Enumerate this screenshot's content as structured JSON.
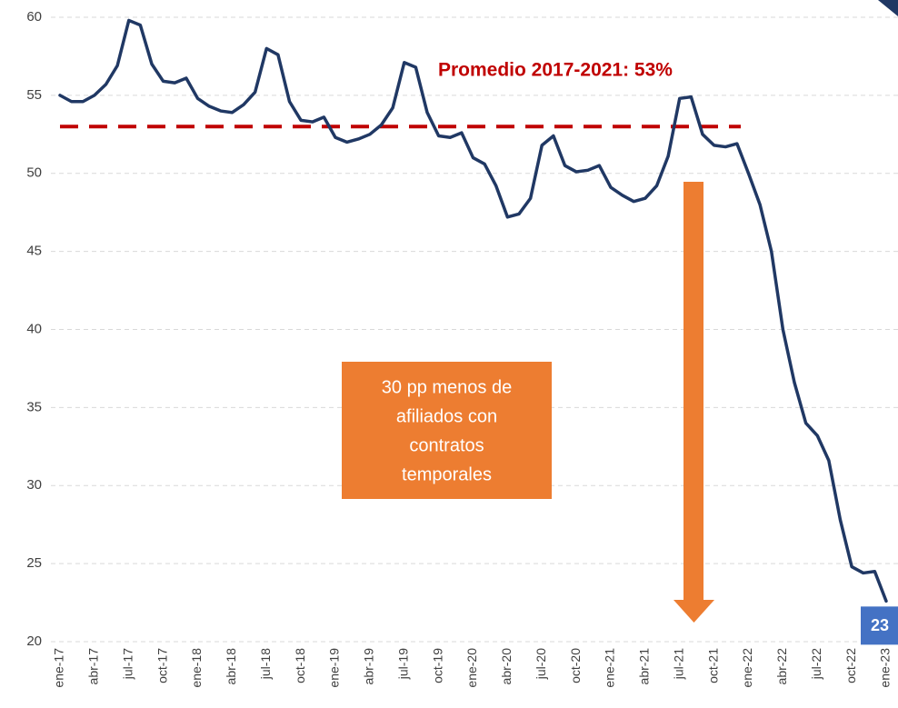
{
  "chart_data": {
    "type": "line",
    "categories": [
      "ene-17",
      null,
      null,
      "abr-17",
      null,
      null,
      "jul-17",
      null,
      null,
      "oct-17",
      null,
      null,
      "ene-18",
      null,
      null,
      "abr-18",
      null,
      null,
      "jul-18",
      null,
      null,
      "oct-18",
      null,
      null,
      "ene-19",
      null,
      null,
      "abr-19",
      null,
      null,
      "jul-19",
      null,
      null,
      "oct-19",
      null,
      null,
      "ene-20",
      null,
      null,
      "abr-20",
      null,
      null,
      "jul-20",
      null,
      null,
      "oct-20",
      null,
      null,
      "ene-21",
      null,
      null,
      "abr-21",
      null,
      null,
      "jul-21",
      null,
      null,
      "oct-21",
      null,
      null,
      "ene-22",
      null,
      null,
      "abr-22",
      null,
      null,
      "jul-22",
      null,
      null,
      "oct-22",
      null,
      null,
      "ene-23"
    ],
    "series": [
      {
        "color": "#203864",
        "values": [
          55.0,
          54.6,
          54.6,
          55.0,
          55.7,
          56.9,
          59.8,
          59.5,
          57.0,
          55.9,
          55.8,
          56.1,
          54.8,
          54.3,
          54.0,
          53.9,
          54.4,
          55.2,
          58.0,
          57.6,
          54.6,
          53.4,
          53.3,
          53.6,
          52.3,
          52.0,
          52.2,
          52.5,
          53.1,
          54.2,
          57.1,
          56.8,
          53.9,
          52.4,
          52.3,
          52.6,
          51.0,
          50.6,
          49.2,
          47.2,
          47.4,
          48.4,
          51.8,
          52.4,
          50.5,
          50.1,
          50.2,
          50.5,
          49.1,
          48.6,
          48.2,
          48.4,
          49.2,
          51.1,
          54.8,
          54.9,
          52.5,
          51.8,
          51.7,
          51.9,
          50.0,
          48.0,
          45.0,
          40.0,
          36.6,
          34.0,
          33.2,
          31.6,
          27.8,
          24.8,
          24.4,
          24.5,
          22.6
        ],
        "value_labels": [
          null,
          null,
          null,
          null,
          null,
          null,
          null,
          null,
          null,
          null,
          null,
          null,
          null,
          null,
          null,
          null,
          null,
          null,
          null,
          null,
          null,
          null,
          null,
          null,
          null,
          null,
          null,
          null,
          null,
          null,
          null,
          null,
          null,
          null,
          null,
          null,
          null,
          null,
          null,
          null,
          null,
          null,
          null,
          null,
          null,
          null,
          null,
          null,
          null,
          null,
          null,
          null,
          null,
          null,
          null,
          null,
          null,
          null,
          null,
          null,
          null,
          null,
          null,
          null,
          null,
          null,
          null,
          null,
          null,
          null,
          null,
          null,
          "23"
        ]
      }
    ],
    "ylim": [
      20,
      60
    ],
    "yticks": [
      20,
      25,
      30,
      35,
      40,
      45,
      50,
      55,
      60
    ],
    "grid": true,
    "reference_line": {
      "value": 53,
      "color": "#c00000",
      "label": "Promedio 2017-2021: 53%"
    },
    "annotation": {
      "lines": [
        "30 pp menos de",
        "afiliados con",
        "contratos",
        "temporales"
      ],
      "color": "#ed7d31"
    }
  }
}
